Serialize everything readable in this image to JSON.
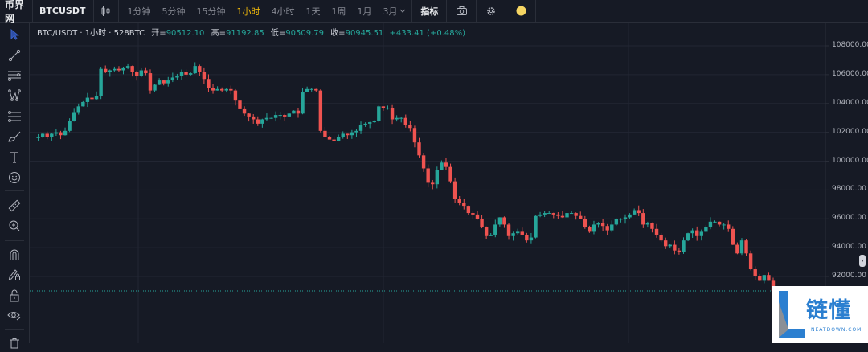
{
  "topbar": {
    "logo": "币界网",
    "symbol": "BTCUSDT",
    "compare_icon": "compare-icon",
    "intervals": [
      {
        "label": "1分钟",
        "active": false
      },
      {
        "label": "5分钟",
        "active": false
      },
      {
        "label": "15分钟",
        "active": false
      },
      {
        "label": "1小时",
        "active": true
      },
      {
        "label": "4小时",
        "active": false
      },
      {
        "label": "1天",
        "active": false
      },
      {
        "label": "1周",
        "active": false
      },
      {
        "label": "1月",
        "active": false
      },
      {
        "label": "3月",
        "active": false
      }
    ],
    "indicators_label": "指标",
    "icons": [
      "camera-icon",
      "gear-icon",
      "theme-toggle-icon"
    ]
  },
  "legend": {
    "symbol_line": "BTC/USDT · 1小时 · 528BTC",
    "open_label": "开=",
    "open": "90512.10",
    "high_label": "高=",
    "high": "91192.85",
    "low_label": "低=",
    "low": "90509.79",
    "close_label": "收=",
    "close": "90945.51",
    "change": "+433.41",
    "change_pct": "(+0.48%)"
  },
  "sidebar": {
    "tools": [
      "cursor-icon",
      "trend-line-icon",
      "horizontal-lines-icon",
      "pattern-icon",
      "fib-icon",
      "brush-icon",
      "text-icon",
      "emoji-icon",
      "ruler-icon",
      "zoom-in-icon",
      "magnet-icon",
      "lock-drawing-icon",
      "unlock-icon",
      "eye-icon",
      "trash-icon"
    ]
  },
  "colors": {
    "up": "#26a69a",
    "down": "#ef5350",
    "background": "#161a25",
    "grid": "#222633",
    "accent": "#f0b90b"
  },
  "watermark": {
    "text": "链懂",
    "sub": "NEATDOWN.COM"
  },
  "chart_data": {
    "type": "candlestick",
    "title": "BTC/USDT · 1小时 · 528BTC",
    "xlabel": "",
    "ylabel": "",
    "y_ticks": [
      "108000.00",
      "106000.00",
      "104000.00",
      "102000.00",
      "100000.00",
      "98000.00",
      "96000.00",
      "94000.00",
      "92000.00"
    ],
    "ylim": [
      90000,
      109200
    ],
    "grid": true,
    "last_price_line": 91000,
    "path": [
      101600,
      101700,
      101900,
      101700,
      101900,
      102000,
      101800,
      102100,
      102800,
      103400,
      103800,
      104100,
      104400,
      104300,
      104500,
      106400,
      106200,
      106300,
      106400,
      106300,
      106500,
      106600,
      106200,
      105900,
      106300,
      106100,
      104900,
      105300,
      105600,
      105400,
      105600,
      105800,
      105900,
      106200,
      106000,
      106100,
      106600,
      106200,
      105700,
      105100,
      104900,
      105000,
      104900,
      105000,
      104900,
      104200,
      103600,
      103300,
      103100,
      102900,
      102600,
      102900,
      103000,
      103000,
      103200,
      103200,
      103100,
      103300,
      103500,
      103300,
      104800,
      105000,
      105000,
      104900,
      102100,
      101700,
      101500,
      101400,
      101700,
      101900,
      101800,
      102000,
      102100,
      102500,
      102600,
      102700,
      102800,
      103800,
      103700,
      103700,
      102900,
      103000,
      103000,
      102500,
      102300,
      101300,
      100400,
      99500,
      98500,
      98400,
      99400,
      99900,
      99600,
      98600,
      97400,
      97100,
      96900,
      96400,
      96300,
      96000,
      95400,
      94800,
      94900,
      95600,
      96100,
      95600,
      94800,
      95000,
      95100,
      94900,
      94500,
      94700,
      96200,
      96300,
      96400,
      96400,
      96300,
      96200,
      96100,
      96400,
      96400,
      96200,
      96000,
      95400,
      95100,
      95600,
      95700,
      95500,
      95200,
      95600,
      96000,
      96000,
      96100,
      96300,
      96600,
      96400,
      95600,
      95700,
      95300,
      94900,
      94500,
      94100,
      94200,
      93800,
      93700,
      94500,
      95000,
      95200,
      94800,
      95100,
      95400,
      95800,
      95800,
      95600,
      95600,
      95300,
      94200,
      93600,
      94500,
      93600,
      92500,
      92000,
      91700,
      92100,
      91700,
      91000
    ]
  }
}
